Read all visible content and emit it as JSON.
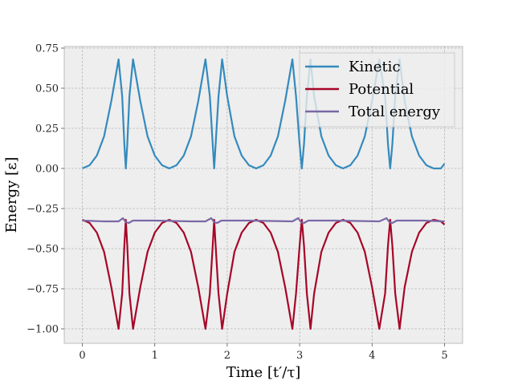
{
  "chart_data": {
    "type": "line",
    "xlabel": "Time [t′/τ]",
    "ylabel": "Energy [ε]",
    "xlim": [
      -0.25,
      5.25
    ],
    "ylim": [
      -1.09,
      0.76
    ],
    "x_ticks": [
      0,
      1,
      2,
      3,
      4,
      5
    ],
    "x_tick_labels": [
      "0",
      "1",
      "2",
      "3",
      "4",
      "5"
    ],
    "y_ticks": [
      0.75,
      0.5,
      0.25,
      0.0,
      -0.25,
      -0.5,
      -0.75,
      -1.0
    ],
    "y_tick_labels": [
      "0.75",
      "0.50",
      "0.25",
      "0.00",
      "−0.25",
      "−0.50",
      "−0.75",
      "−1.00"
    ],
    "grid": true,
    "legend_position": "top-right",
    "series": [
      {
        "name": "Kinetic",
        "color": "#348abd",
        "x": [
          0.0,
          0.1,
          0.2,
          0.3,
          0.4,
          0.5,
          0.55,
          0.58,
          0.6,
          0.62,
          0.65,
          0.7,
          0.8,
          0.9,
          1.0,
          1.1,
          1.2,
          1.3,
          1.4,
          1.5,
          1.6,
          1.7,
          1.76,
          1.8,
          1.82,
          1.84,
          1.88,
          1.93,
          2.0,
          2.1,
          2.2,
          2.3,
          2.4,
          2.5,
          2.6,
          2.7,
          2.8,
          2.9,
          2.95,
          3.0,
          3.03,
          3.06,
          3.1,
          3.15,
          3.2,
          3.3,
          3.4,
          3.5,
          3.6,
          3.7,
          3.8,
          3.9,
          4.0,
          4.1,
          4.18,
          4.22,
          4.25,
          4.28,
          4.32,
          4.38,
          4.45,
          4.55,
          4.65,
          4.75,
          4.85,
          4.95,
          5.0
        ],
        "y": [
          0.0,
          0.02,
          0.08,
          0.2,
          0.42,
          0.68,
          0.45,
          0.15,
          0.0,
          0.15,
          0.45,
          0.68,
          0.42,
          0.2,
          0.08,
          0.02,
          0.0,
          0.02,
          0.08,
          0.2,
          0.42,
          0.68,
          0.45,
          0.15,
          0.0,
          0.15,
          0.45,
          0.68,
          0.45,
          0.2,
          0.08,
          0.02,
          0.0,
          0.02,
          0.08,
          0.2,
          0.42,
          0.68,
          0.45,
          0.15,
          0.0,
          0.15,
          0.45,
          0.68,
          0.45,
          0.2,
          0.08,
          0.02,
          0.0,
          0.02,
          0.08,
          0.2,
          0.42,
          0.68,
          0.45,
          0.15,
          0.0,
          0.15,
          0.45,
          0.68,
          0.42,
          0.2,
          0.08,
          0.02,
          0.0,
          0.0,
          0.03
        ]
      },
      {
        "name": "Potential",
        "color": "#a60628",
        "x": [
          0.0,
          0.1,
          0.2,
          0.3,
          0.4,
          0.5,
          0.55,
          0.58,
          0.6,
          0.62,
          0.65,
          0.7,
          0.8,
          0.9,
          1.0,
          1.1,
          1.2,
          1.3,
          1.4,
          1.5,
          1.6,
          1.7,
          1.76,
          1.8,
          1.82,
          1.84,
          1.88,
          1.93,
          2.0,
          2.1,
          2.2,
          2.3,
          2.4,
          2.5,
          2.6,
          2.7,
          2.8,
          2.9,
          2.95,
          3.0,
          3.03,
          3.06,
          3.1,
          3.15,
          3.2,
          3.3,
          3.4,
          3.5,
          3.6,
          3.7,
          3.8,
          3.9,
          4.0,
          4.1,
          4.18,
          4.22,
          4.25,
          4.28,
          4.32,
          4.38,
          4.45,
          4.55,
          4.65,
          4.75,
          4.85,
          4.95,
          5.0
        ],
        "y": [
          -0.32,
          -0.34,
          -0.4,
          -0.52,
          -0.74,
          -1.0,
          -0.78,
          -0.48,
          -0.32,
          -0.48,
          -0.78,
          -1.0,
          -0.74,
          -0.52,
          -0.4,
          -0.34,
          -0.32,
          -0.34,
          -0.4,
          -0.52,
          -0.74,
          -1.0,
          -0.78,
          -0.48,
          -0.32,
          -0.48,
          -0.78,
          -1.0,
          -0.78,
          -0.52,
          -0.4,
          -0.34,
          -0.32,
          -0.34,
          -0.4,
          -0.52,
          -0.74,
          -1.0,
          -0.78,
          -0.48,
          -0.32,
          -0.48,
          -0.78,
          -1.0,
          -0.78,
          -0.52,
          -0.4,
          -0.34,
          -0.32,
          -0.34,
          -0.4,
          -0.52,
          -0.74,
          -1.0,
          -0.78,
          -0.48,
          -0.32,
          -0.48,
          -0.78,
          -1.0,
          -0.74,
          -0.52,
          -0.4,
          -0.34,
          -0.32,
          -0.33,
          -0.35
        ]
      },
      {
        "name": "Total energy",
        "color": "#7a68a6",
        "x": [
          0.0,
          0.3,
          0.5,
          0.56,
          0.6,
          0.64,
          0.7,
          1.0,
          1.5,
          1.7,
          1.78,
          1.82,
          1.86,
          1.92,
          2.3,
          2.9,
          2.98,
          3.02,
          3.06,
          3.12,
          3.5,
          4.1,
          4.2,
          4.24,
          4.28,
          4.34,
          4.7,
          5.0
        ],
        "y": [
          -0.325,
          -0.33,
          -0.33,
          -0.31,
          -0.335,
          -0.34,
          -0.325,
          -0.325,
          -0.33,
          -0.33,
          -0.31,
          -0.335,
          -0.34,
          -0.325,
          -0.325,
          -0.33,
          -0.31,
          -0.335,
          -0.34,
          -0.325,
          -0.325,
          -0.33,
          -0.31,
          -0.335,
          -0.34,
          -0.325,
          -0.325,
          -0.33
        ]
      }
    ]
  }
}
